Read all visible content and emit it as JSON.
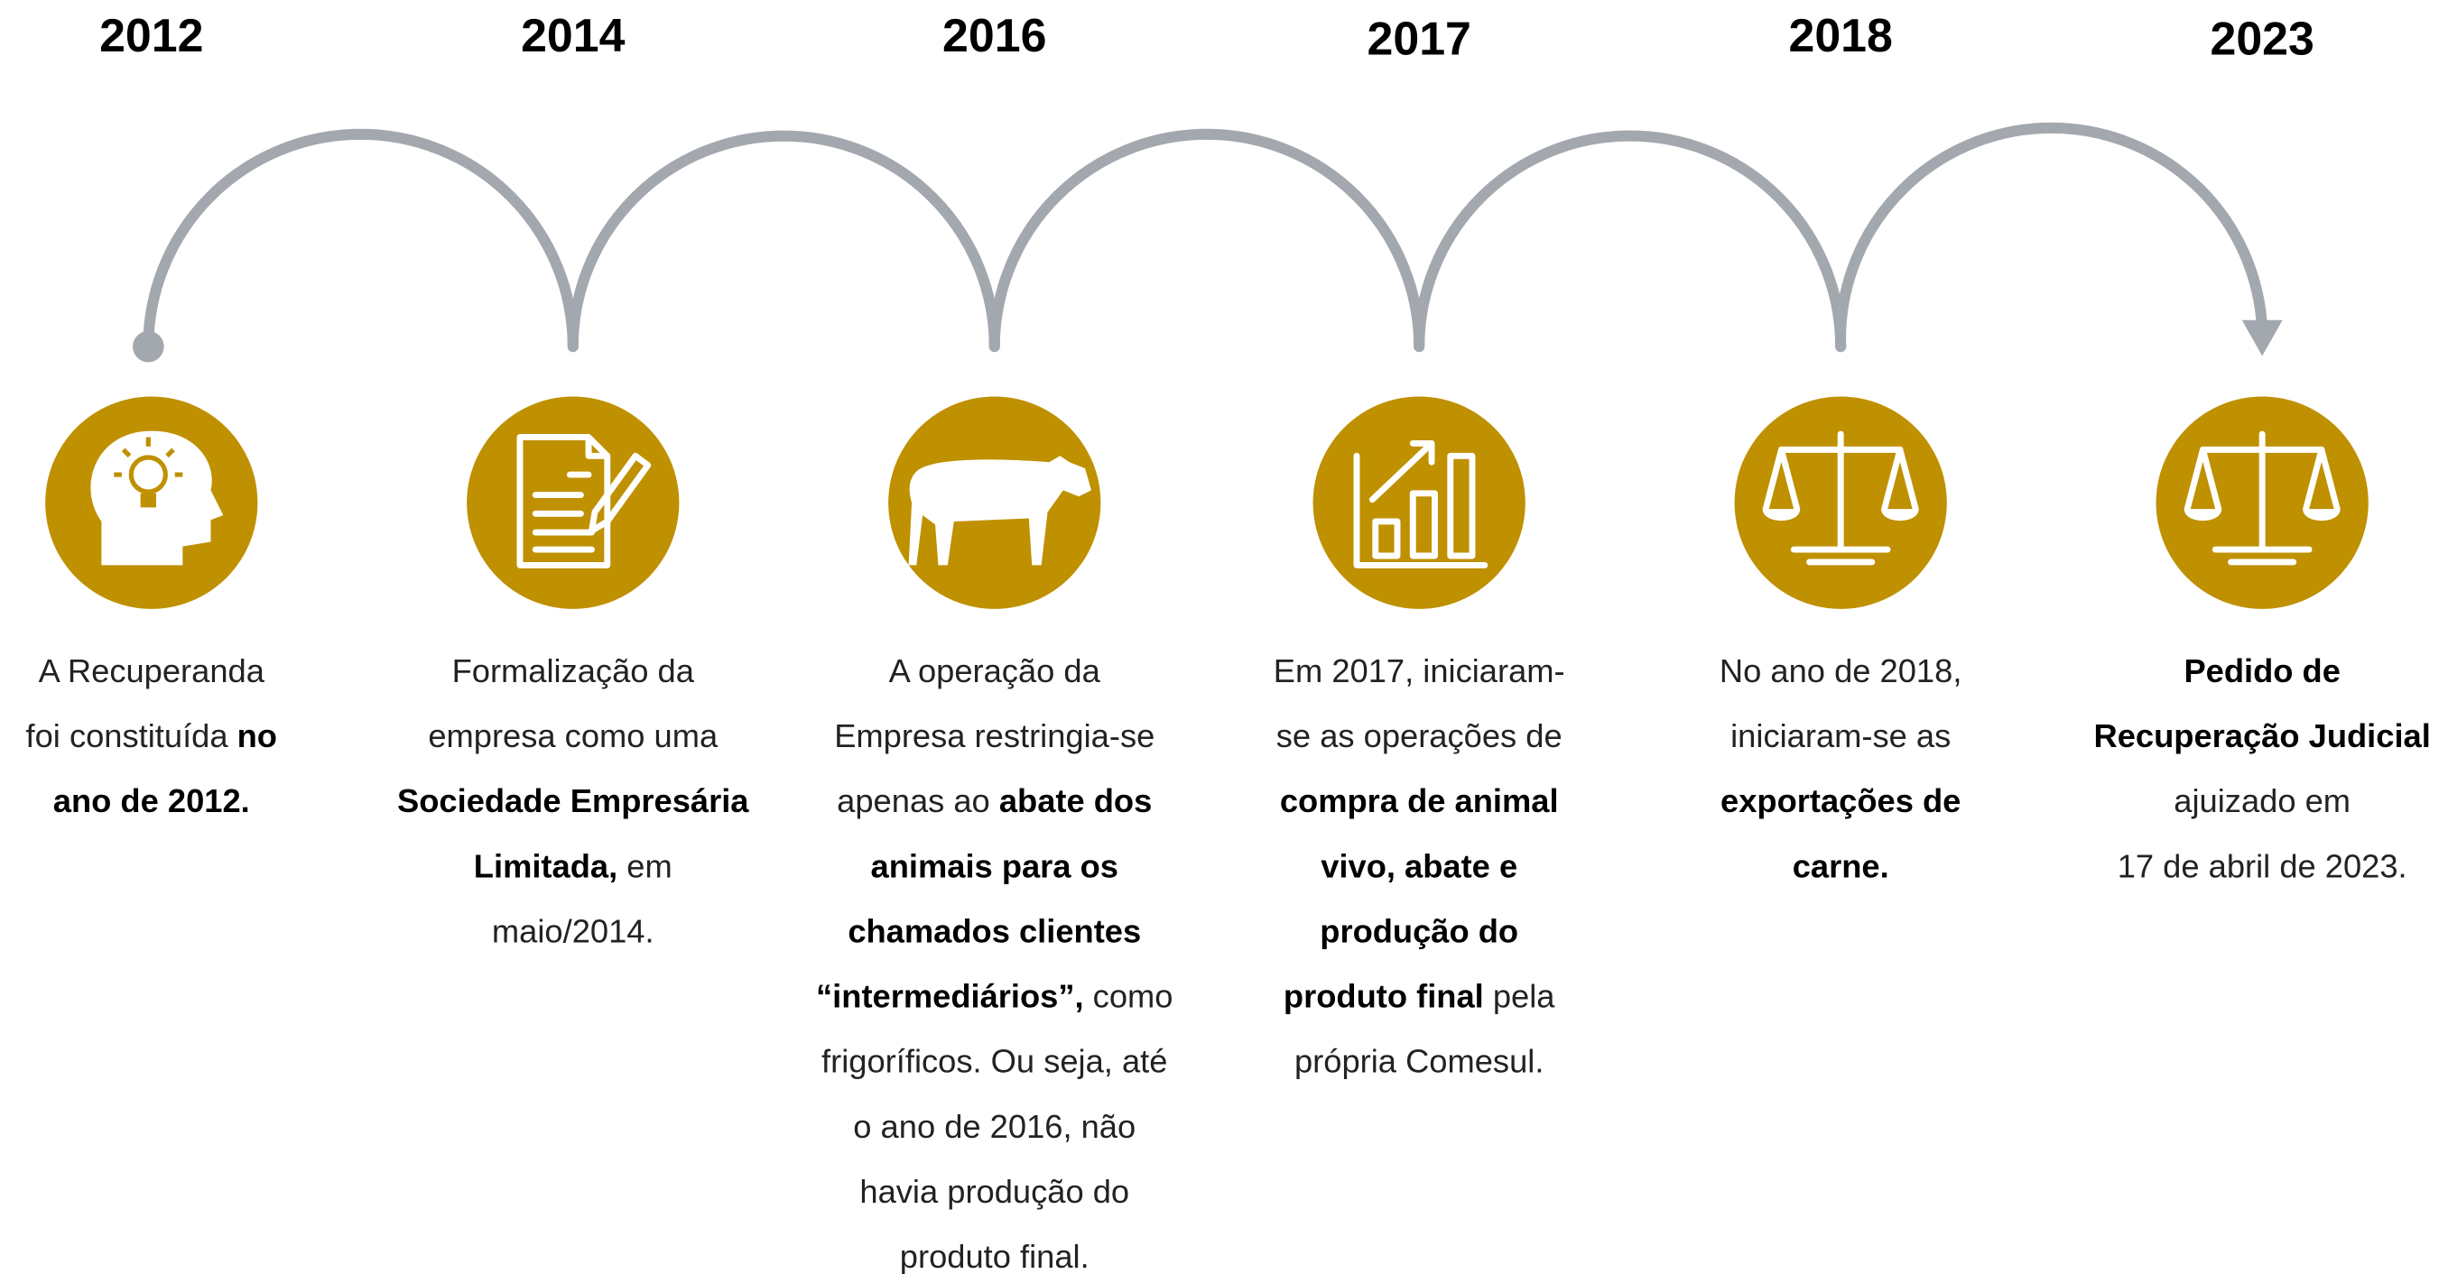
{
  "events": [
    {
      "year": "2012",
      "lines": [
        [
          {
            "text": "A Recuperanda",
            "bold": false
          }
        ],
        [
          {
            "text": "foi constituída ",
            "bold": false
          },
          {
            "text": "no",
            "bold": true
          }
        ],
        [
          {
            "text": "ano de 2012.",
            "bold": true
          }
        ]
      ]
    },
    {
      "year": "2014",
      "lines": [
        [
          {
            "text": "Formalização da",
            "bold": false
          }
        ],
        [
          {
            "text": "empresa como uma",
            "bold": false
          }
        ],
        [
          {
            "text": "Sociedade Empresária",
            "bold": true
          }
        ],
        [
          {
            "text": "Limitada,",
            "bold": true
          },
          {
            "text": " em",
            "bold": false
          }
        ],
        [
          {
            "text": "maio/2014.",
            "bold": false
          }
        ]
      ]
    },
    {
      "year": "2016",
      "lines": [
        [
          {
            "text": "A operação da",
            "bold": false
          }
        ],
        [
          {
            "text": "Empresa restringia-se",
            "bold": false
          }
        ],
        [
          {
            "text": "apenas ao ",
            "bold": false
          },
          {
            "text": "abate dos",
            "bold": true
          }
        ],
        [
          {
            "text": "animais para os",
            "bold": true
          }
        ],
        [
          {
            "text": "chamados clientes",
            "bold": true
          }
        ],
        [
          {
            "text": "“intermediários”,",
            "bold": true
          },
          {
            "text": " como",
            "bold": false
          }
        ],
        [
          {
            "text": "frigoríficos. Ou seja, até",
            "bold": false
          }
        ],
        [
          {
            "text": "o ano de 2016, não",
            "bold": false
          }
        ],
        [
          {
            "text": "havia produção do",
            "bold": false
          }
        ],
        [
          {
            "text": "produto final.",
            "bold": false
          }
        ]
      ]
    },
    {
      "year": "2017",
      "lines": [
        [
          {
            "text": "Em 2017, iniciaram-",
            "bold": false
          }
        ],
        [
          {
            "text": "se as operações de",
            "bold": false
          }
        ],
        [
          {
            "text": "compra de animal",
            "bold": true
          }
        ],
        [
          {
            "text": "vivo, abate e",
            "bold": true
          }
        ],
        [
          {
            "text": "produção do",
            "bold": true
          }
        ],
        [
          {
            "text": "produto final",
            "bold": true
          },
          {
            "text": " pela",
            "bold": false
          }
        ],
        [
          {
            "text": "própria Comesul.",
            "bold": false
          }
        ]
      ]
    },
    {
      "year": "2018",
      "lines": [
        [
          {
            "text": "No ano de 2018,",
            "bold": false
          }
        ],
        [
          {
            "text": "iniciaram-se as",
            "bold": false
          }
        ],
        [
          {
            "text": "exportações de",
            "bold": true
          }
        ],
        [
          {
            "text": "carne.",
            "bold": true
          }
        ]
      ]
    },
    {
      "year": "2023",
      "lines": [
        [
          {
            "text": "Pedido de",
            "bold": true
          }
        ],
        [
          {
            "text": "Recuperação Judicial",
            "bold": true
          }
        ],
        [
          {
            "text": "ajuizado em",
            "bold": false
          }
        ],
        [
          {
            "text": "17 de abril de 2023.",
            "bold": false
          }
        ]
      ]
    }
  ]
}
